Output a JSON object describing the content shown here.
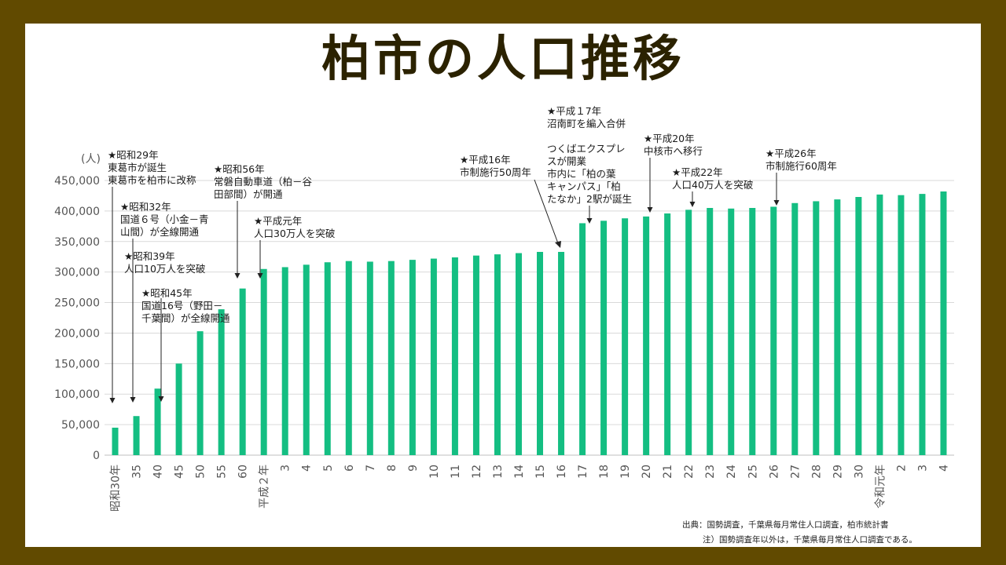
{
  "title": "柏市の人口推移",
  "chart_data": {
    "type": "bar",
    "title": "柏市の人口推移",
    "ylabel": "(人)",
    "ylim": [
      0,
      450000
    ],
    "yticks": [
      "0",
      "50,000",
      "100,000",
      "150,000",
      "200,000",
      "250,000",
      "300,000",
      "350,000",
      "400,000",
      "450,000"
    ],
    "grid": true,
    "bar_color": "#14be82",
    "categories": [
      "昭和30年",
      "35",
      "40",
      "45",
      "50",
      "55",
      "60",
      "平成２年",
      "3",
      "4",
      "5",
      "6",
      "7",
      "8",
      "9",
      "10",
      "11",
      "12",
      "13",
      "14",
      "15",
      "16",
      "17",
      "18",
      "19",
      "20",
      "21",
      "22",
      "23",
      "24",
      "25",
      "26",
      "27",
      "28",
      "29",
      "30",
      "令和元年",
      "2",
      "3",
      "4"
    ],
    "values": [
      45000,
      64000,
      109000,
      150000,
      203000,
      239000,
      273000,
      305000,
      308000,
      312000,
      316000,
      318000,
      317000,
      318000,
      320000,
      322000,
      324000,
      327000,
      329000,
      331000,
      333000,
      333000,
      380000,
      384000,
      388000,
      391000,
      396000,
      402000,
      405000,
      404000,
      405000,
      407000,
      413000,
      416000,
      419000,
      423000,
      427000,
      426000,
      428000,
      432000
    ],
    "annotations": [
      {
        "lines": [
          "★昭和29年",
          "東葛市が誕生",
          "東葛市を柏市に改称"
        ],
        "target": "昭和29年"
      },
      {
        "lines": [
          "★昭和32年",
          "国道６号（小金－青",
          "山間）が全線開通"
        ],
        "target": "昭和32年"
      },
      {
        "lines": [
          "★昭和39年",
          "人口10万人を突破"
        ],
        "target": "昭和39年"
      },
      {
        "lines": [
          "★昭和45年",
          "国道16号（野田－",
          "千葉間）が全線開通"
        ],
        "target": "45"
      },
      {
        "lines": [
          "★昭和56年",
          "常磐自動車道（柏－谷",
          "田部間）が開通"
        ],
        "target": "昭和56年"
      },
      {
        "lines": [
          "★平成元年",
          "人口30万人を突破"
        ],
        "target": "平成元年"
      },
      {
        "lines": [
          "★平成16年",
          "市制施行50周年"
        ],
        "target": "16"
      },
      {
        "lines": [
          "★平成１7年",
          "沼南町を編入合併",
          "",
          "つくばエクスプレ",
          "スが開業",
          "市内に「柏の葉",
          "キャンパス」「柏",
          "たなか」2駅が誕生"
        ],
        "target": "17"
      },
      {
        "lines": [
          "★平成20年",
          "中核市へ移行"
        ],
        "target": "20"
      },
      {
        "lines": [
          "★平成22年",
          "人口40万人を突破"
        ],
        "target": "22"
      },
      {
        "lines": [
          "★平成26年",
          "市制施行60周年"
        ],
        "target": "26"
      }
    ]
  },
  "source_line": "出典：国勢調査，千葉県毎月常住人口調査，柏市統計書",
  "note_line": "注）国勢調査年以外は，千葉県毎月常住人口調査である。"
}
